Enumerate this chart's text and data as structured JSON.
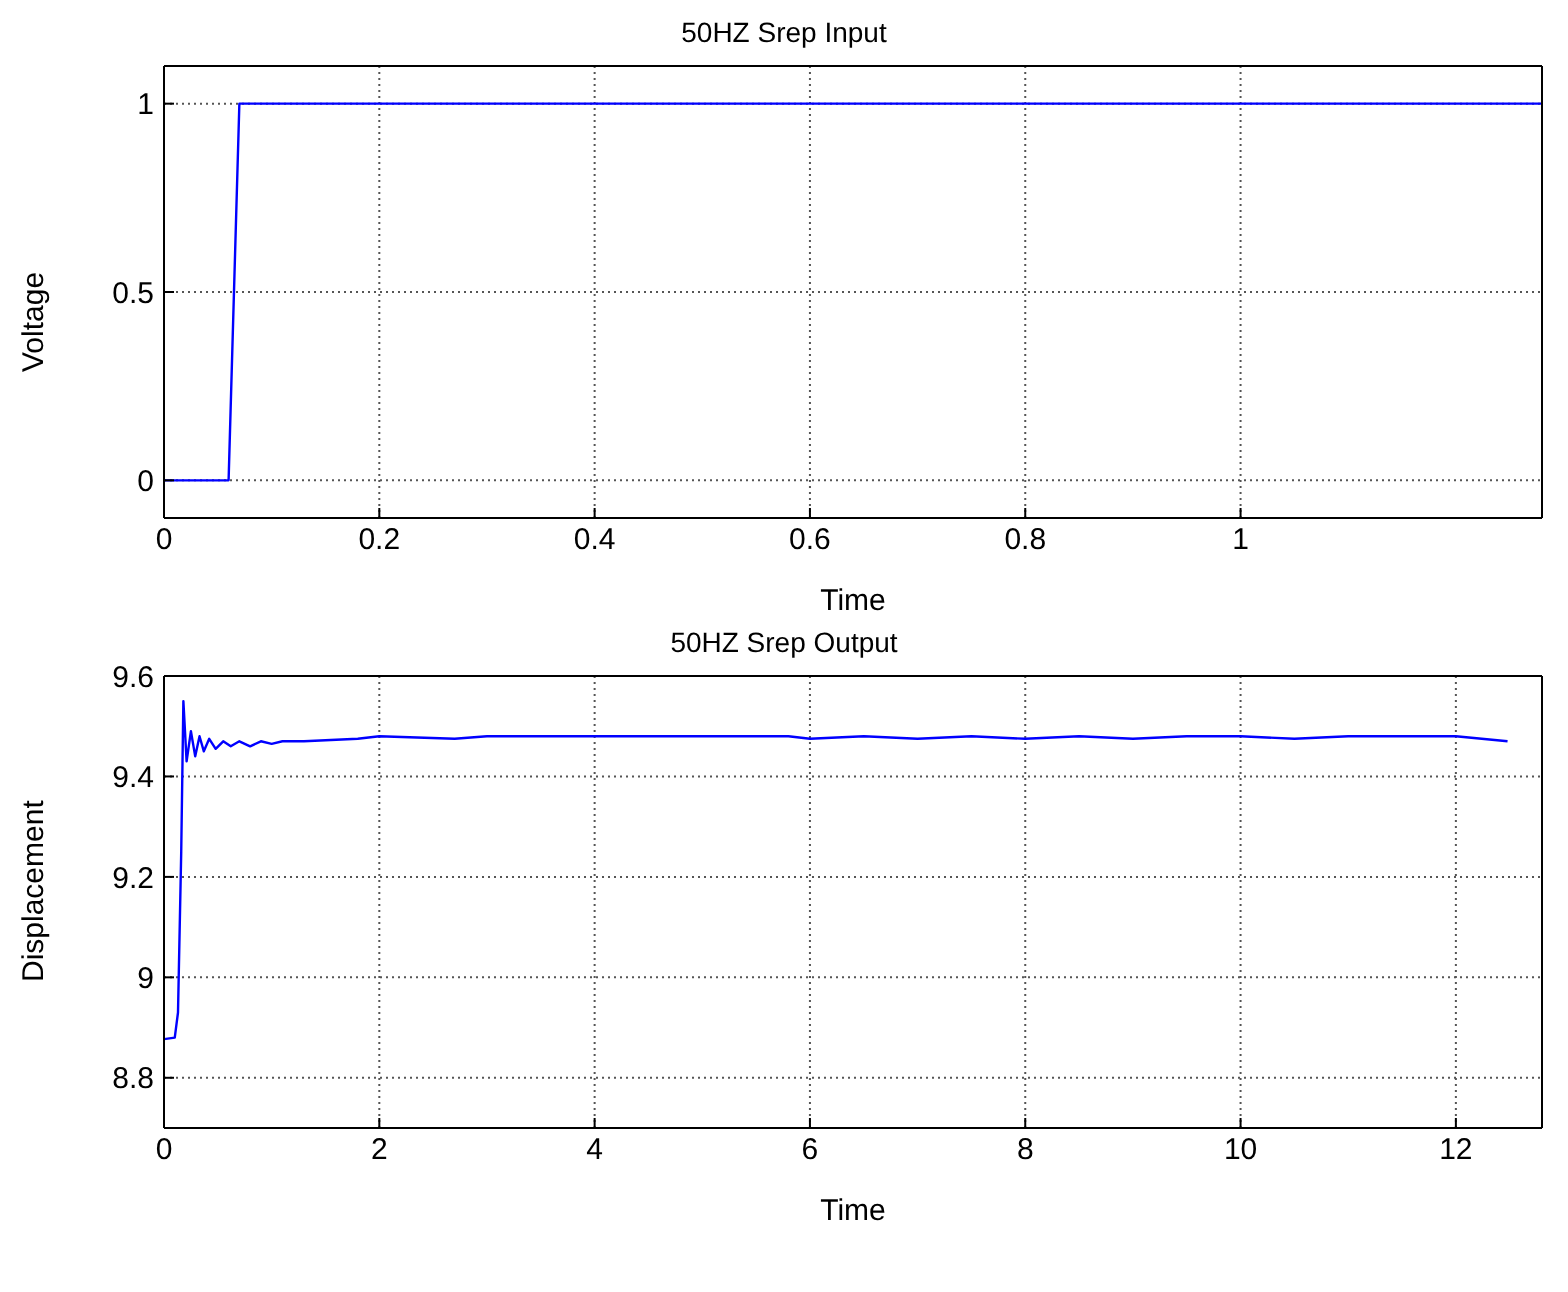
{
  "chart_data": [
    {
      "type": "line",
      "title": "50HZ Srep Input",
      "xlabel": "Time",
      "ylabel": "Voltage",
      "xlim": [
        0,
        1.28
      ],
      "ylim": [
        -0.1,
        1.1
      ],
      "xticks": [
        0,
        0.2,
        0.4,
        0.6,
        0.8,
        1
      ],
      "yticks": [
        0,
        0.5,
        1
      ],
      "grid": true,
      "line_style": "solid",
      "series": [
        {
          "color": "#0000ff",
          "x": [
            0,
            0.06,
            0.07,
            1.28
          ],
          "values": [
            0,
            0,
            1,
            1
          ]
        }
      ]
    },
    {
      "type": "line",
      "title": "50HZ Srep Output",
      "xlabel": "Time",
      "ylabel": "Displacement",
      "xlim": [
        0,
        12.8
      ],
      "ylim": [
        8.7,
        9.6
      ],
      "xticks": [
        0,
        2,
        4,
        6,
        8,
        10,
        12
      ],
      "yticks": [
        8.8,
        9,
        9.2,
        9.4,
        9.6
      ],
      "grid": true,
      "line_style": "solid",
      "series": [
        {
          "color": "#0000ff",
          "x": [
            0,
            0.1,
            0.13,
            0.16,
            0.18,
            0.21,
            0.25,
            0.29,
            0.33,
            0.37,
            0.42,
            0.48,
            0.55,
            0.62,
            0.7,
            0.8,
            0.9,
            1.0,
            1.1,
            1.3,
            1.8,
            2.0,
            2.7,
            3.0,
            5.8,
            6.0,
            6.5,
            7.0,
            7.5,
            8.0,
            8.5,
            9.0,
            9.5,
            10.0,
            10.5,
            11.0,
            12.0,
            12.48
          ],
          "values": [
            8.877,
            8.88,
            8.93,
            9.25,
            9.55,
            9.43,
            9.49,
            9.44,
            9.48,
            9.45,
            9.475,
            9.455,
            9.47,
            9.46,
            9.47,
            9.46,
            9.47,
            9.465,
            9.47,
            9.47,
            9.475,
            9.48,
            9.475,
            9.48,
            9.48,
            9.475,
            9.48,
            9.475,
            9.48,
            9.475,
            9.48,
            9.475,
            9.48,
            9.48,
            9.475,
            9.48,
            9.48,
            9.47
          ]
        }
      ]
    }
  ]
}
